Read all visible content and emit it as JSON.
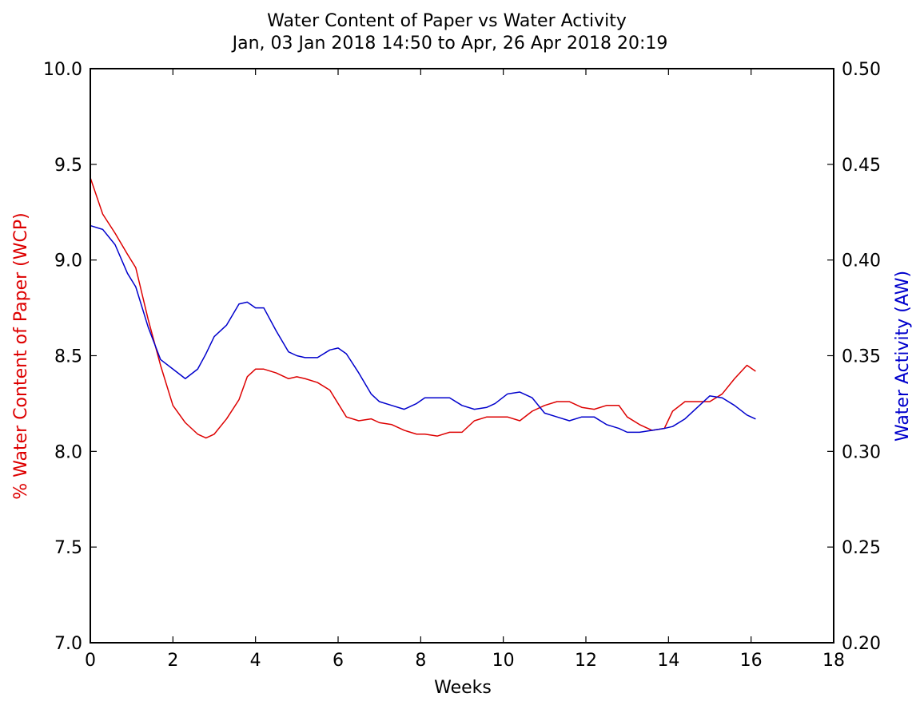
{
  "chart_data": {
    "type": "line",
    "title": "Water Content of Paper vs Water Activity",
    "subtitle": "Jan, 03 Jan 2018 14:50 to Apr, 26 Apr 2018 20:19",
    "xlabel": "Weeks",
    "ylabel_left": "% Water Content of Paper (WCP)",
    "ylabel_right": "Water Activity (AW)",
    "xlim": [
      0,
      18
    ],
    "ylim_left": [
      7.0,
      10.0
    ],
    "ylim_right": [
      0.2,
      0.5
    ],
    "x_ticks": [
      "0",
      "2",
      "4",
      "6",
      "8",
      "10",
      "12",
      "14",
      "16",
      "18"
    ],
    "y_left_ticks": [
      "7.0",
      "7.5",
      "8.0",
      "8.5",
      "9.0",
      "9.5",
      "10.0"
    ],
    "y_right_ticks": [
      "0.20",
      "0.25",
      "0.30",
      "0.35",
      "0.40",
      "0.45",
      "0.50"
    ],
    "grid": false,
    "colors": {
      "wcp": "#dd0000",
      "aw": "#0000cc",
      "axes": "#000000"
    },
    "series": [
      {
        "key": "wcp",
        "axis": "left",
        "x": [
          0,
          0.3,
          0.6,
          0.9,
          1.1,
          1.4,
          1.7,
          2.0,
          2.3,
          2.6,
          2.8,
          3.0,
          3.3,
          3.6,
          3.8,
          4.0,
          4.2,
          4.5,
          4.8,
          5.0,
          5.2,
          5.5,
          5.8,
          6.0,
          6.2,
          6.5,
          6.8,
          7.0,
          7.3,
          7.6,
          7.9,
          8.1,
          8.4,
          8.7,
          9.0,
          9.3,
          9.6,
          9.8,
          10.1,
          10.4,
          10.7,
          11.0,
          11.3,
          11.6,
          11.9,
          12.2,
          12.5,
          12.8,
          13.0,
          13.3,
          13.6,
          13.9,
          14.1,
          14.4,
          14.7,
          15.0,
          15.3,
          15.6,
          15.9,
          16.1
        ],
        "values": [
          9.43,
          9.24,
          9.14,
          9.03,
          8.96,
          8.69,
          8.45,
          8.24,
          8.15,
          8.09,
          8.07,
          8.09,
          8.17,
          8.27,
          8.39,
          8.43,
          8.43,
          8.41,
          8.38,
          8.39,
          8.38,
          8.36,
          8.32,
          8.25,
          8.18,
          8.16,
          8.17,
          8.15,
          8.14,
          8.11,
          8.09,
          8.09,
          8.08,
          8.1,
          8.1,
          8.16,
          8.18,
          8.18,
          8.18,
          8.16,
          8.21,
          8.24,
          8.26,
          8.26,
          8.23,
          8.22,
          8.24,
          8.24,
          8.18,
          8.14,
          8.11,
          8.12,
          8.21,
          8.26,
          8.26,
          8.26,
          8.3,
          8.38,
          8.45,
          8.42
        ]
      },
      {
        "key": "aw",
        "axis": "right",
        "x": [
          0,
          0.3,
          0.6,
          0.9,
          1.1,
          1.4,
          1.7,
          2.0,
          2.3,
          2.6,
          2.8,
          3.0,
          3.3,
          3.6,
          3.8,
          4.0,
          4.2,
          4.5,
          4.8,
          5.0,
          5.2,
          5.5,
          5.8,
          6.0,
          6.2,
          6.5,
          6.8,
          7.0,
          7.3,
          7.6,
          7.9,
          8.1,
          8.4,
          8.7,
          9.0,
          9.3,
          9.6,
          9.8,
          10.1,
          10.4,
          10.7,
          11.0,
          11.3,
          11.6,
          11.9,
          12.2,
          12.5,
          12.8,
          13.0,
          13.3,
          13.6,
          13.9,
          14.1,
          14.4,
          14.7,
          15.0,
          15.3,
          15.6,
          15.9,
          16.1
        ],
        "values": [
          0.418,
          0.416,
          0.408,
          0.393,
          0.386,
          0.365,
          0.348,
          0.343,
          0.338,
          0.343,
          0.351,
          0.36,
          0.366,
          0.377,
          0.378,
          0.375,
          0.375,
          0.363,
          0.352,
          0.35,
          0.349,
          0.349,
          0.353,
          0.354,
          0.351,
          0.341,
          0.33,
          0.326,
          0.324,
          0.322,
          0.325,
          0.328,
          0.328,
          0.328,
          0.324,
          0.322,
          0.323,
          0.325,
          0.33,
          0.331,
          0.328,
          0.32,
          0.318,
          0.316,
          0.318,
          0.318,
          0.314,
          0.312,
          0.31,
          0.31,
          0.311,
          0.312,
          0.313,
          0.317,
          0.323,
          0.329,
          0.328,
          0.324,
          0.319,
          0.317
        ]
      }
    ]
  }
}
